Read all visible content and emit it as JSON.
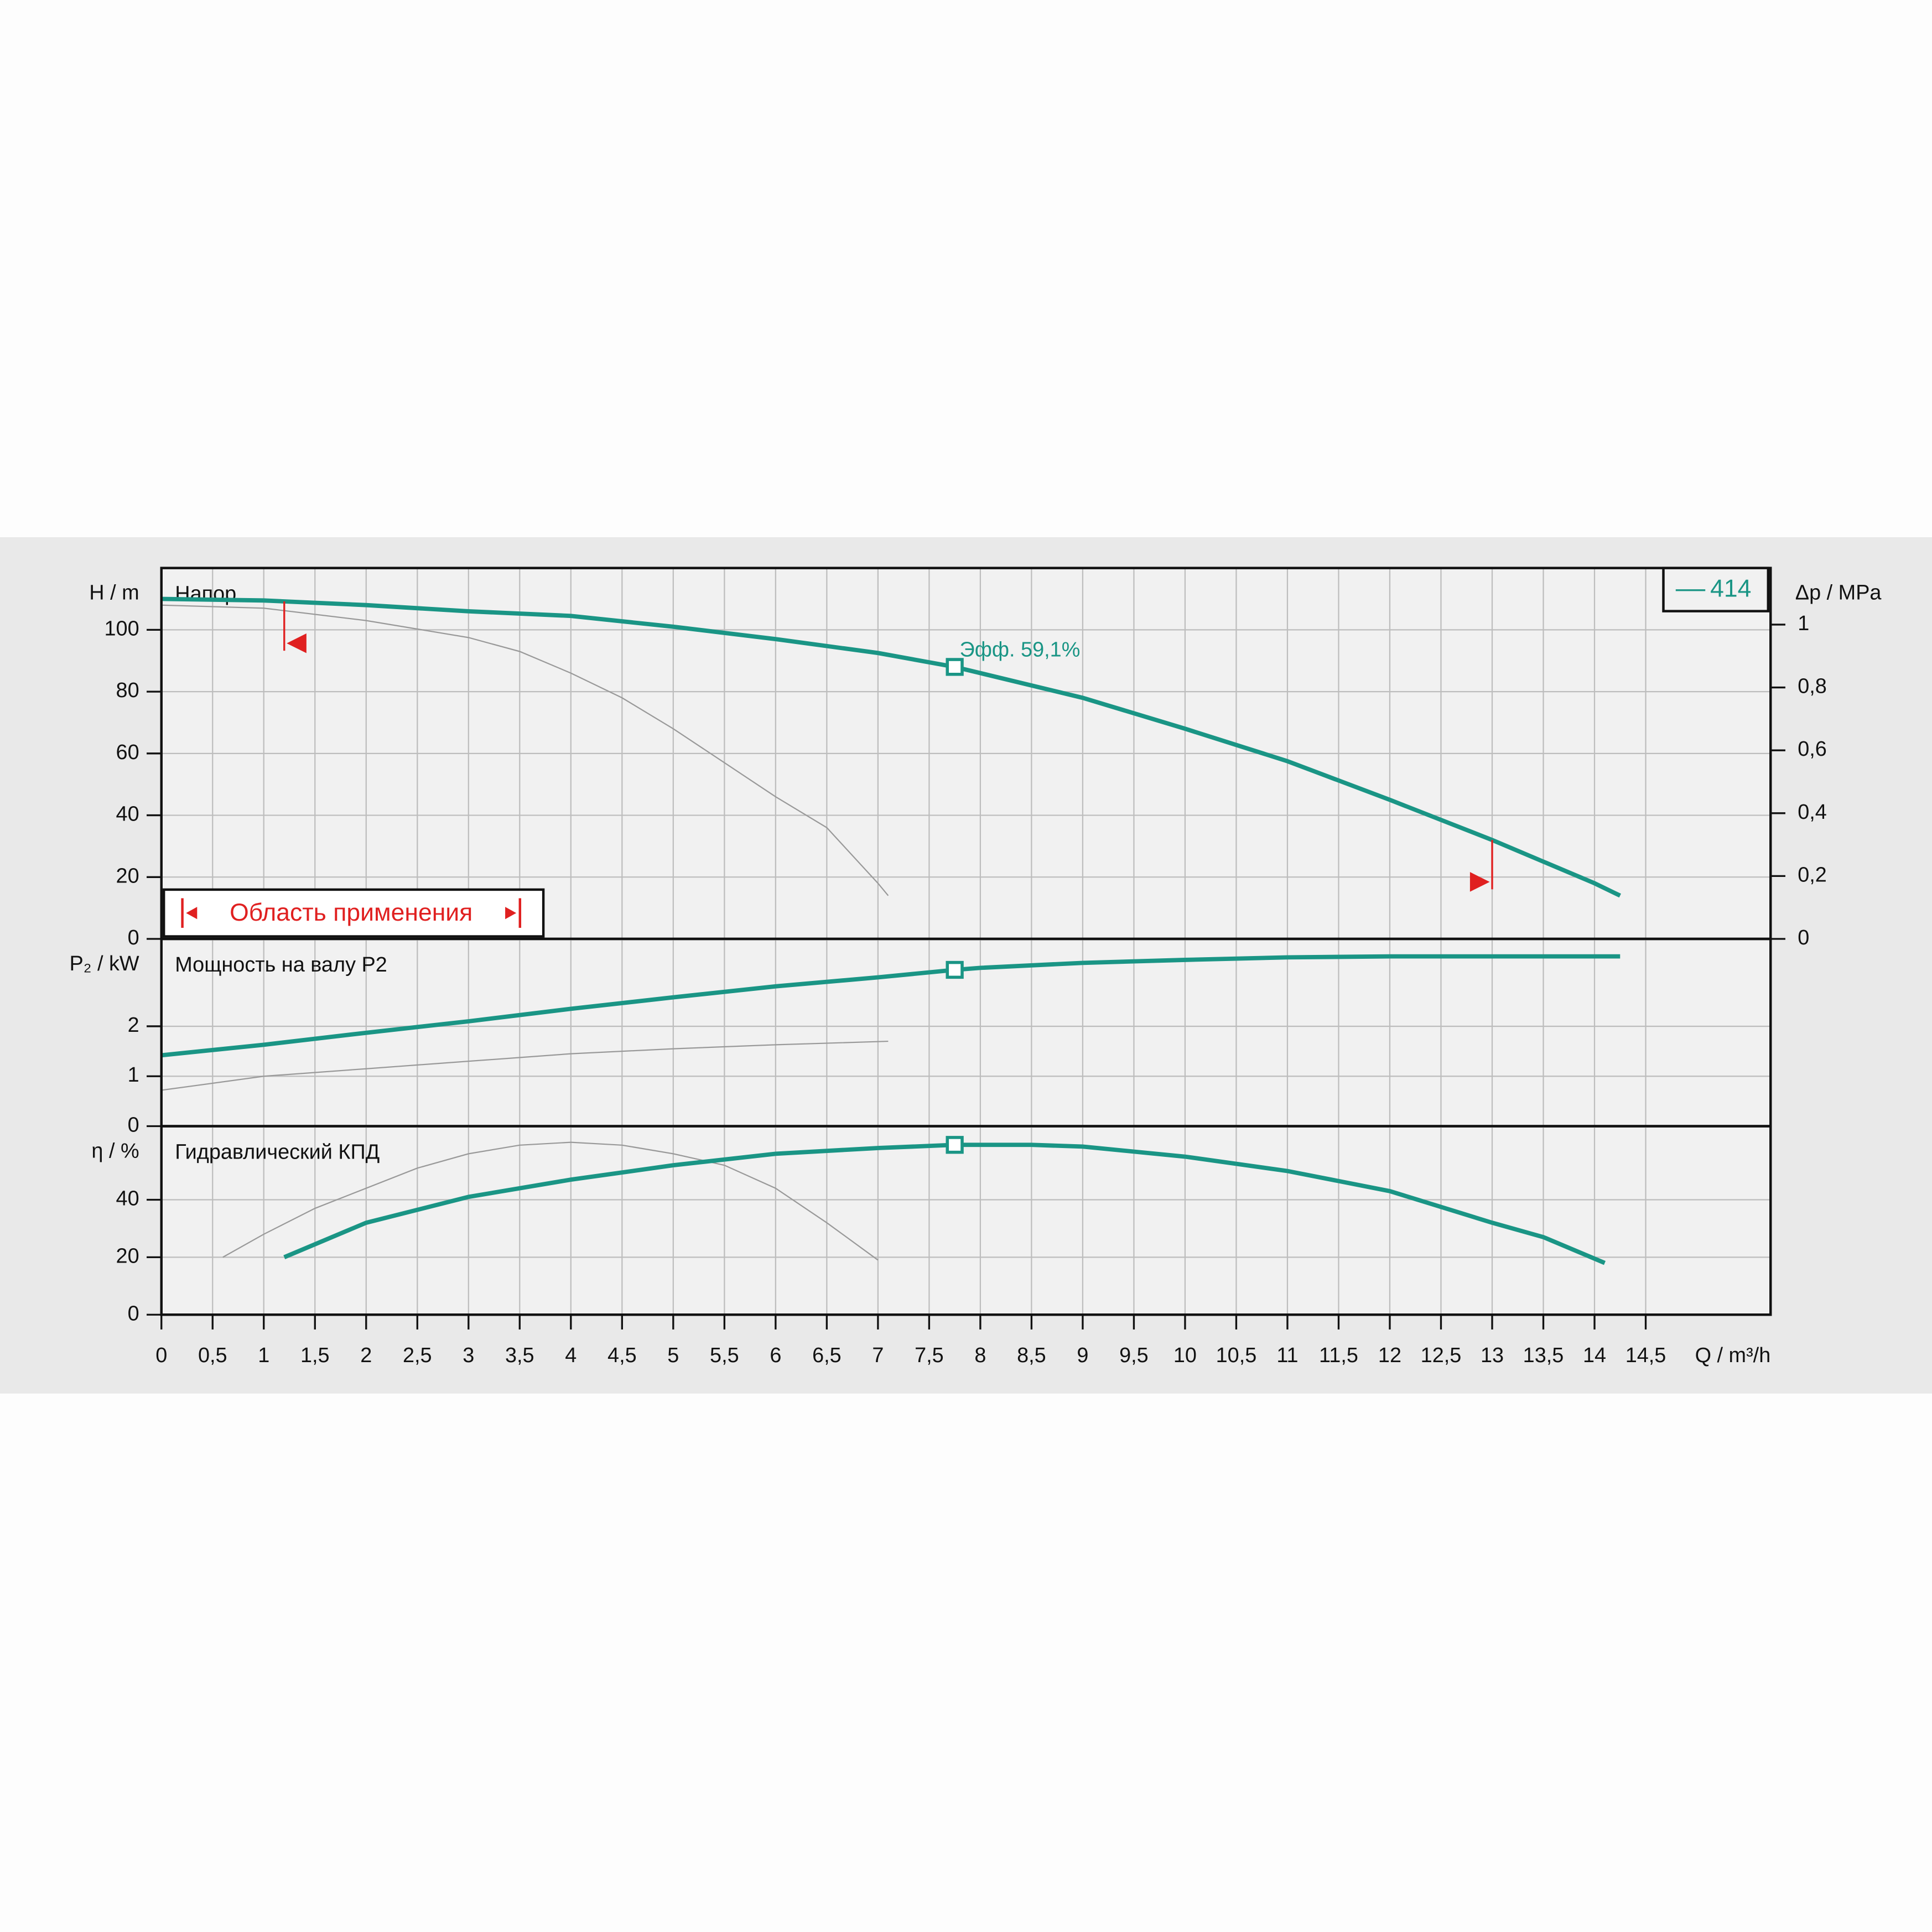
{
  "chart_data": [
    {
      "type": "line",
      "title": "Напор",
      "ylabel": "H / m",
      "y2label": "Δp / MPa",
      "annotation": "Эфф.  59,1%",
      "ylim": [
        0,
        120
      ],
      "yticks": [
        0,
        20,
        40,
        60,
        80,
        100
      ],
      "y2lim": [
        0,
        1.18
      ],
      "y2ticks": [
        0,
        {
          "value": 0.2,
          "label": "0,2"
        },
        {
          "value": 0.4,
          "label": "0,4"
        },
        {
          "value": 0.6,
          "label": "0,6"
        },
        {
          "value": 0.8,
          "label": "0,8"
        },
        1
      ],
      "grid": true,
      "series": [
        {
          "name": "414",
          "color": "#1a9585",
          "x": [
            0,
            1,
            2,
            3,
            4,
            5,
            6,
            7,
            7.75,
            8,
            9,
            10,
            11,
            12,
            13,
            14,
            14.25
          ],
          "values": [
            110,
            109.5,
            108,
            106,
            104.5,
            101,
            97,
            92.5,
            88,
            86,
            78,
            68,
            57.5,
            45,
            32,
            18,
            14
          ]
        },
        {
          "color": "#999999",
          "x": [
            0,
            1,
            2,
            3,
            3.5,
            4,
            4.5,
            5,
            5.5,
            6,
            6.5,
            7,
            7.1
          ],
          "values": [
            108,
            107,
            103,
            97.5,
            93,
            86,
            78,
            68,
            57,
            46,
            36,
            18,
            14
          ]
        }
      ],
      "duty_point": {
        "x": 7.75,
        "y": 88
      },
      "application_range": {
        "label": "Область применения",
        "limits": [
          1.2,
          13
        ]
      }
    },
    {
      "type": "line",
      "title": "Мощность на валу P2",
      "ylabel": "P₂ / kW",
      "ylim": [
        0,
        3.75
      ],
      "yticks": [
        0,
        1,
        2
      ],
      "grid": true,
      "series": [
        {
          "color": "#1a9585",
          "x": [
            0,
            1,
            2,
            3,
            4,
            5,
            6,
            7,
            7.75,
            8,
            9,
            10,
            11,
            12,
            13,
            14.25
          ],
          "values": [
            1.42,
            1.63,
            1.87,
            2.1,
            2.35,
            2.58,
            2.8,
            2.98,
            3.13,
            3.17,
            3.27,
            3.33,
            3.38,
            3.4,
            3.4,
            3.4
          ]
        },
        {
          "color": "#999999",
          "x": [
            0,
            1,
            2,
            3,
            4,
            5,
            6,
            7.1
          ],
          "values": [
            0.72,
            1.0,
            1.15,
            1.3,
            1.45,
            1.55,
            1.63,
            1.7
          ]
        }
      ],
      "duty_point": {
        "x": 7.75,
        "y": 3.13
      }
    },
    {
      "type": "line",
      "title": "Гидравлический КПД",
      "ylabel": "η / %",
      "xlabel": "Q / m³/h",
      "ylim": [
        0,
        65.6
      ],
      "yticks": [
        0,
        20,
        40
      ],
      "grid": true,
      "xlim": [
        0,
        15.72
      ],
      "xticks": [
        0,
        {
          "value": 0.5,
          "label": "0,5"
        },
        1,
        {
          "value": 1.5,
          "label": "1,5"
        },
        2,
        {
          "value": 2.5,
          "label": "2,5"
        },
        3,
        {
          "value": 3.5,
          "label": "3,5"
        },
        4,
        {
          "value": 4.5,
          "label": "4,5"
        },
        5,
        {
          "value": 5.5,
          "label": "5,5"
        },
        6,
        {
          "value": 6.5,
          "label": "6,5"
        },
        7,
        {
          "value": 7.5,
          "label": "7,5"
        },
        8,
        {
          "value": 8.5,
          "label": "8,5"
        },
        9,
        {
          "value": 9.5,
          "label": "9,5"
        },
        10,
        {
          "value": 10.5,
          "label": "10,5"
        },
        11,
        {
          "value": 11.5,
          "label": "11,5"
        },
        12,
        {
          "value": 12.5,
          "label": "12,5"
        },
        13,
        {
          "value": 13.5,
          "label": "13,5"
        },
        14,
        {
          "value": 14.5,
          "label": "14,5"
        }
      ],
      "series": [
        {
          "color": "#1a9585",
          "x": [
            1.2,
            2,
            3,
            4,
            5,
            6,
            7,
            7.75,
            8.5,
            9,
            10,
            11,
            12,
            13,
            13.5,
            14.1
          ],
          "values": [
            20,
            32,
            41,
            47,
            52,
            56,
            58,
            59.1,
            59.1,
            58.5,
            55,
            50,
            43,
            32,
            27,
            18
          ]
        },
        {
          "color": "#999999",
          "x": [
            0.6,
            1,
            1.5,
            2,
            2.5,
            3,
            3.5,
            4,
            4.5,
            5,
            5.5,
            6,
            6.5,
            7
          ],
          "values": [
            20,
            28,
            37,
            44,
            51,
            56,
            59,
            60,
            59,
            56,
            52,
            44,
            32,
            19
          ]
        }
      ],
      "duty_point": {
        "x": 7.75,
        "y": 59.1
      }
    }
  ]
}
